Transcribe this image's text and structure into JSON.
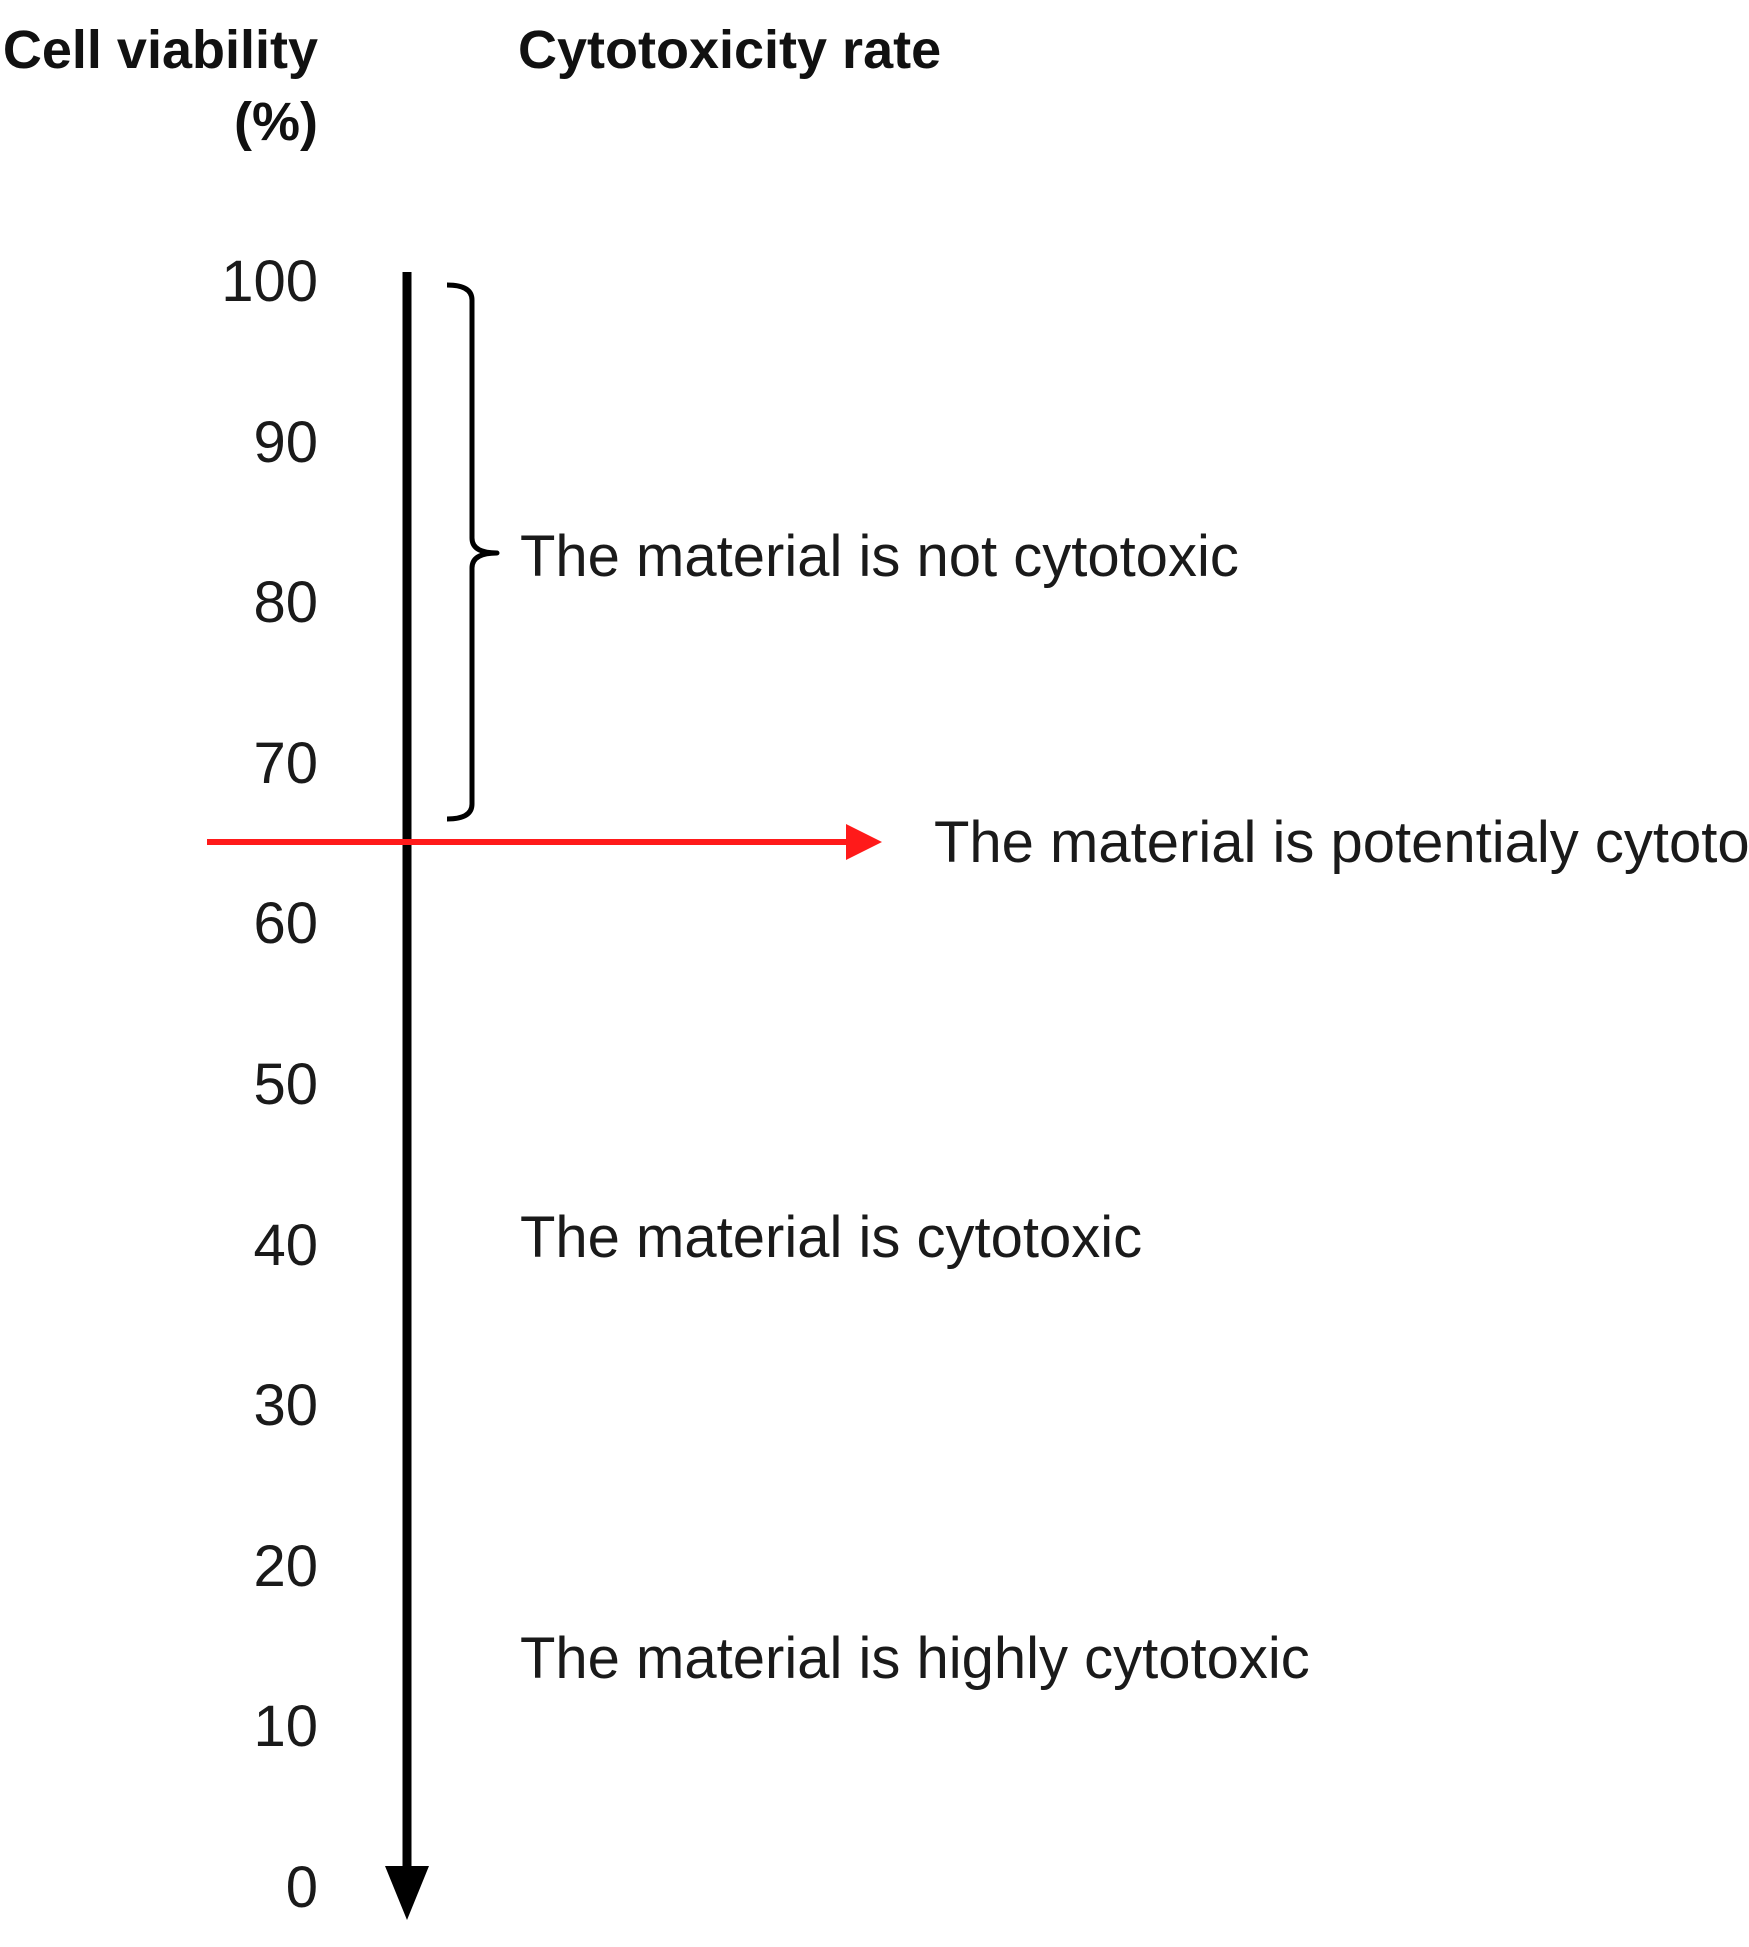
{
  "header": {
    "viability_line1": "Cell viability",
    "viability_line2": "(%)",
    "rate": "Cytotoxicity rate"
  },
  "scale": {
    "ticks": [
      "100",
      "90",
      "80",
      "70",
      "60",
      "50",
      "40",
      "30",
      "20",
      "10",
      "0"
    ],
    "axis_color": "#000000"
  },
  "threshold": {
    "value": 70,
    "label": "The material is potentialy cytotoxic",
    "color": "#ff1a1a"
  },
  "categories": {
    "not_cytotoxic": "The material is not cytotoxic",
    "cytotoxic": "The material is cytotoxic",
    "highly_cytotoxic": "The material is highly cytotoxic"
  }
}
